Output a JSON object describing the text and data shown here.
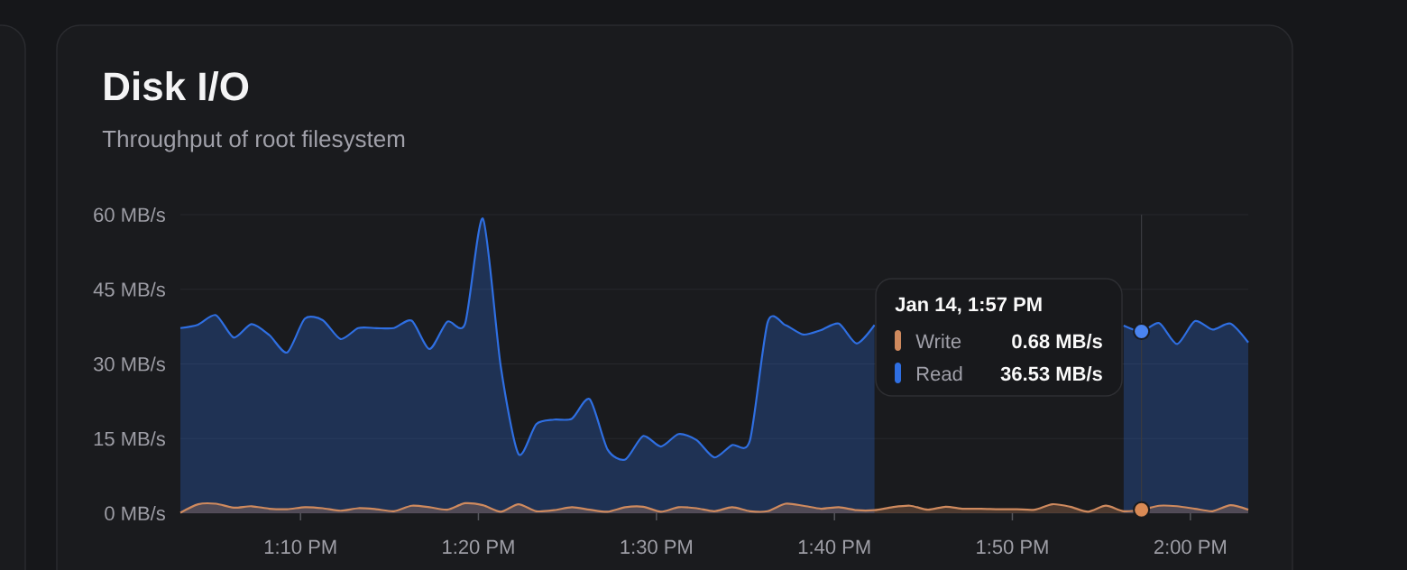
{
  "chart_data": {
    "type": "area",
    "title": "Disk I/O",
    "subtitle": "Throughput of root filesystem",
    "x": [
      13.0542,
      13.0708,
      13.0875,
      13.1042,
      13.1208,
      13.1375,
      13.1542,
      13.1708,
      13.1875,
      13.2042,
      13.2208,
      13.2375,
      13.2542,
      13.2708,
      13.2875,
      13.3042,
      13.3208,
      13.3375,
      13.3542,
      13.3708,
      13.3875,
      13.4042,
      13.4208,
      13.4375,
      13.4542,
      13.4708,
      13.4875,
      13.5042,
      13.5208,
      13.5375,
      13.5542,
      13.5708,
      13.5875,
      13.6042,
      13.6208,
      13.6375,
      13.6542,
      13.6708,
      13.6875,
      13.7042,
      13.7208,
      13.7375,
      13.7542,
      13.7708,
      13.7875,
      13.8042,
      13.8208,
      13.8375,
      13.8542,
      13.8708,
      13.8875,
      13.9042,
      13.9208,
      13.9375,
      13.9542,
      13.9708,
      13.9875,
      14.0042,
      14.0208,
      14.0375,
      14.0542
    ],
    "series": [
      {
        "name": "Write",
        "color": "#cf8a5e",
        "values": [
          0.1,
          1.8,
          1.9,
          1.1,
          1.4,
          0.9,
          0.8,
          1.2,
          1.0,
          0.5,
          1.0,
          0.8,
          0.4,
          1.5,
          1.2,
          0.7,
          2.0,
          1.6,
          0.3,
          1.8,
          0.4,
          0.6,
          1.2,
          0.7,
          0.3,
          1.2,
          1.3,
          0.3,
          1.2,
          1.0,
          0.4,
          1.2,
          0.4,
          0.4,
          1.9,
          1.5,
          0.9,
          1.2,
          0.6,
          0.6,
          1.2,
          1.5,
          0.7,
          1.3,
          0.9,
          0.9,
          0.8,
          0.8,
          0.7,
          1.8,
          1.3,
          0.3,
          1.5,
          0.4,
          0.68,
          1.5,
          1.4,
          0.9,
          0.4,
          1.6,
          0.7
        ]
      },
      {
        "name": "Read",
        "color": "#2f6fe2",
        "values": [
          37.2,
          37.9,
          39.8,
          35.3,
          38.0,
          35.8,
          32.3,
          39.1,
          38.8,
          35.0,
          37.2,
          37.2,
          37.2,
          38.7,
          33.0,
          38.5,
          38.1,
          59.2,
          29.5,
          11.9,
          17.9,
          18.8,
          19.0,
          22.9,
          12.8,
          10.8,
          15.5,
          13.4,
          15.9,
          14.7,
          11.2,
          13.7,
          14.6,
          38.4,
          37.8,
          35.9,
          36.8,
          38.1,
          34.1,
          37.8,
          null,
          null,
          null,
          null,
          null,
          null,
          null,
          null,
          null,
          null,
          null,
          null,
          null,
          37.7,
          36.53,
          38.2,
          34.0,
          38.6,
          36.9,
          38.1,
          34.3
        ]
      },
      {
        "type": "scatter",
        "marker": "circle",
        "color": "#d98a55",
        "x": [
          13.9542
        ],
        "values": [
          0.68
        ]
      },
      {
        "type": "scatter",
        "marker": "circle",
        "color": "#4a84f0",
        "x": [
          13.9542
        ],
        "values": [
          36.53
        ]
      }
    ],
    "xlim": [
      13.0542,
      14.0542
    ],
    "ylim": [
      0,
      60
    ],
    "xticks": [
      {
        "value": 13.1667,
        "label": "1:10 PM"
      },
      {
        "value": 13.3333,
        "label": "1:20 PM"
      },
      {
        "value": 13.5,
        "label": "1:30 PM"
      },
      {
        "value": 13.6667,
        "label": "1:40 PM"
      },
      {
        "value": 13.8333,
        "label": "1:50 PM"
      },
      {
        "value": 14,
        "label": "2:00 PM"
      }
    ],
    "yticks": [
      {
        "value": 0,
        "label": "0 MB/s"
      },
      {
        "value": 15,
        "label": "15 MB/s"
      },
      {
        "value": 30,
        "label": "30 MB/s"
      },
      {
        "value": 45,
        "label": "45 MB/s"
      },
      {
        "value": 60,
        "label": "60 MB/s"
      }
    ],
    "grid": "y",
    "legend": "top right",
    "legend_title": "Jan 14, 1:57 PM",
    "annotations": [
      "0.68 MB/s",
      "36.53 MB/s"
    ],
    "ref_lines": [
      {
        "axis": "x",
        "value": 13.9542,
        "color": "#3a3b40"
      }
    ]
  }
}
